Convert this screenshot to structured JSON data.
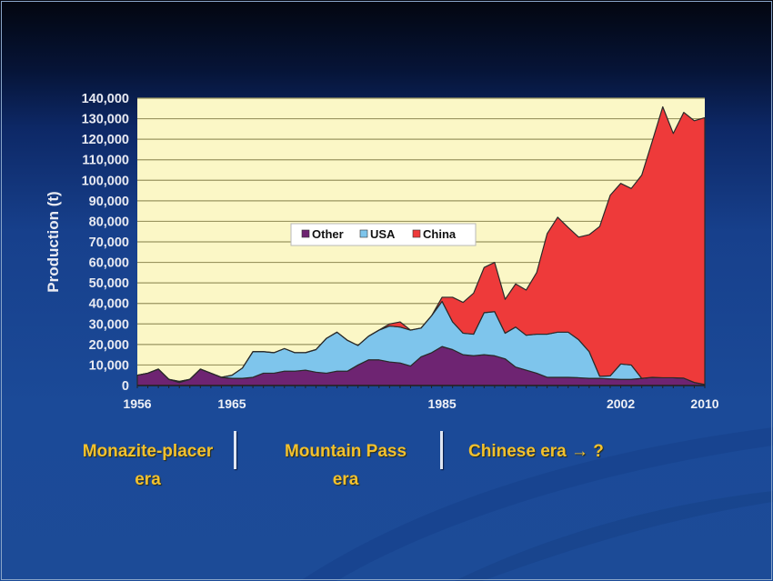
{
  "chart_data": {
    "type": "area",
    "stacked": true,
    "title": "",
    "xlabel": "",
    "ylabel": "Production (t)",
    "ylim": [
      0,
      140000
    ],
    "xlim": [
      1956,
      2010
    ],
    "y_ticks": [
      "0",
      "10,000",
      "20,000",
      "30,000",
      "40,000",
      "50,000",
      "60,000",
      "70,000",
      "80,000",
      "90,000",
      "100,000",
      "110,000",
      "120,000",
      "130,000",
      "140,000"
    ],
    "x_tick_labels": [
      "1956",
      "1965",
      "1985",
      "2002",
      "2010"
    ],
    "grid": true,
    "legend_position": "inside-middle-left",
    "legend": [
      "Other",
      "USA",
      "China"
    ],
    "x": [
      1956,
      1957,
      1958,
      1959,
      1960,
      1961,
      1962,
      1963,
      1964,
      1965,
      1966,
      1967,
      1968,
      1969,
      1970,
      1971,
      1972,
      1973,
      1974,
      1975,
      1976,
      1977,
      1978,
      1979,
      1980,
      1981,
      1982,
      1983,
      1984,
      1985,
      1986,
      1987,
      1988,
      1989,
      1990,
      1991,
      1992,
      1993,
      1994,
      1995,
      1996,
      1997,
      1998,
      1999,
      2000,
      2001,
      2002,
      2003,
      2004,
      2005,
      2006,
      2007,
      2008,
      2009,
      2010
    ],
    "series": [
      {
        "name": "Other",
        "color": "#6e2472",
        "values": [
          5000,
          6000,
          8000,
          3000,
          1500,
          3000,
          8000,
          6000,
          4000,
          3500,
          3500,
          4000,
          6000,
          6000,
          7000,
          7000,
          7500,
          6500,
          6000,
          7000,
          7000,
          10000,
          12500,
          12500,
          11500,
          11000,
          9500,
          14000,
          16000,
          19000,
          17500,
          15000,
          14500,
          15000,
          14500,
          13000,
          9000,
          7500,
          6000,
          4000,
          4000,
          4000,
          3800,
          3500,
          3500,
          3200,
          3000,
          3000,
          3500,
          4000,
          3800,
          3800,
          3600,
          1500,
          500
        ]
      },
      {
        "name": "USA",
        "color": "#7ec5ec",
        "values": [
          0,
          0,
          0,
          0,
          500,
          0,
          0,
          0,
          0,
          1500,
          5000,
          12500,
          10500,
          10000,
          11000,
          9000,
          8500,
          11000,
          17000,
          19000,
          15000,
          9500,
          11500,
          14500,
          17500,
          17500,
          17500,
          14000,
          18000,
          22000,
          13500,
          10500,
          10500,
          20500,
          21500,
          12500,
          19500,
          17000,
          19000,
          21000,
          22000,
          22000,
          18500,
          13000,
          1000,
          1500,
          7500,
          7000,
          0,
          0,
          0,
          0,
          0,
          0,
          0
        ]
      },
      {
        "name": "China",
        "color": "#ee3a3a",
        "values": [
          0,
          0,
          0,
          0,
          0,
          0,
          0,
          0,
          0,
          0,
          0,
          0,
          0,
          0,
          0,
          0,
          0,
          0,
          0,
          0,
          0,
          0,
          0,
          0,
          1000,
          2500,
          0,
          0,
          0,
          2000,
          12000,
          15000,
          20000,
          22000,
          24000,
          16500,
          21000,
          22000,
          30000,
          49000,
          56000,
          51000,
          50000,
          57000,
          73000,
          88000,
          88000,
          86000,
          99000,
          115000,
          132000,
          119000,
          129500,
          127500,
          130000
        ]
      }
    ]
  },
  "axis": {
    "ylabel": "Production (t)"
  },
  "legend": {
    "items": [
      {
        "label": "Other",
        "color": "#6e2472"
      },
      {
        "label": "USA",
        "color": "#7ec5ec"
      },
      {
        "label": "China",
        "color": "#ee3a3a"
      }
    ]
  },
  "eras": [
    {
      "line1": "Monazite-placer",
      "line2": "era"
    },
    {
      "line1": "Mountain Pass",
      "line2": "era"
    },
    {
      "line1": "Chinese era → ?",
      "line2": ""
    }
  ],
  "colors": {
    "plot_bg": "#fbf7c6",
    "gridline": "#9a9560",
    "era_text": "#f2c12e"
  }
}
